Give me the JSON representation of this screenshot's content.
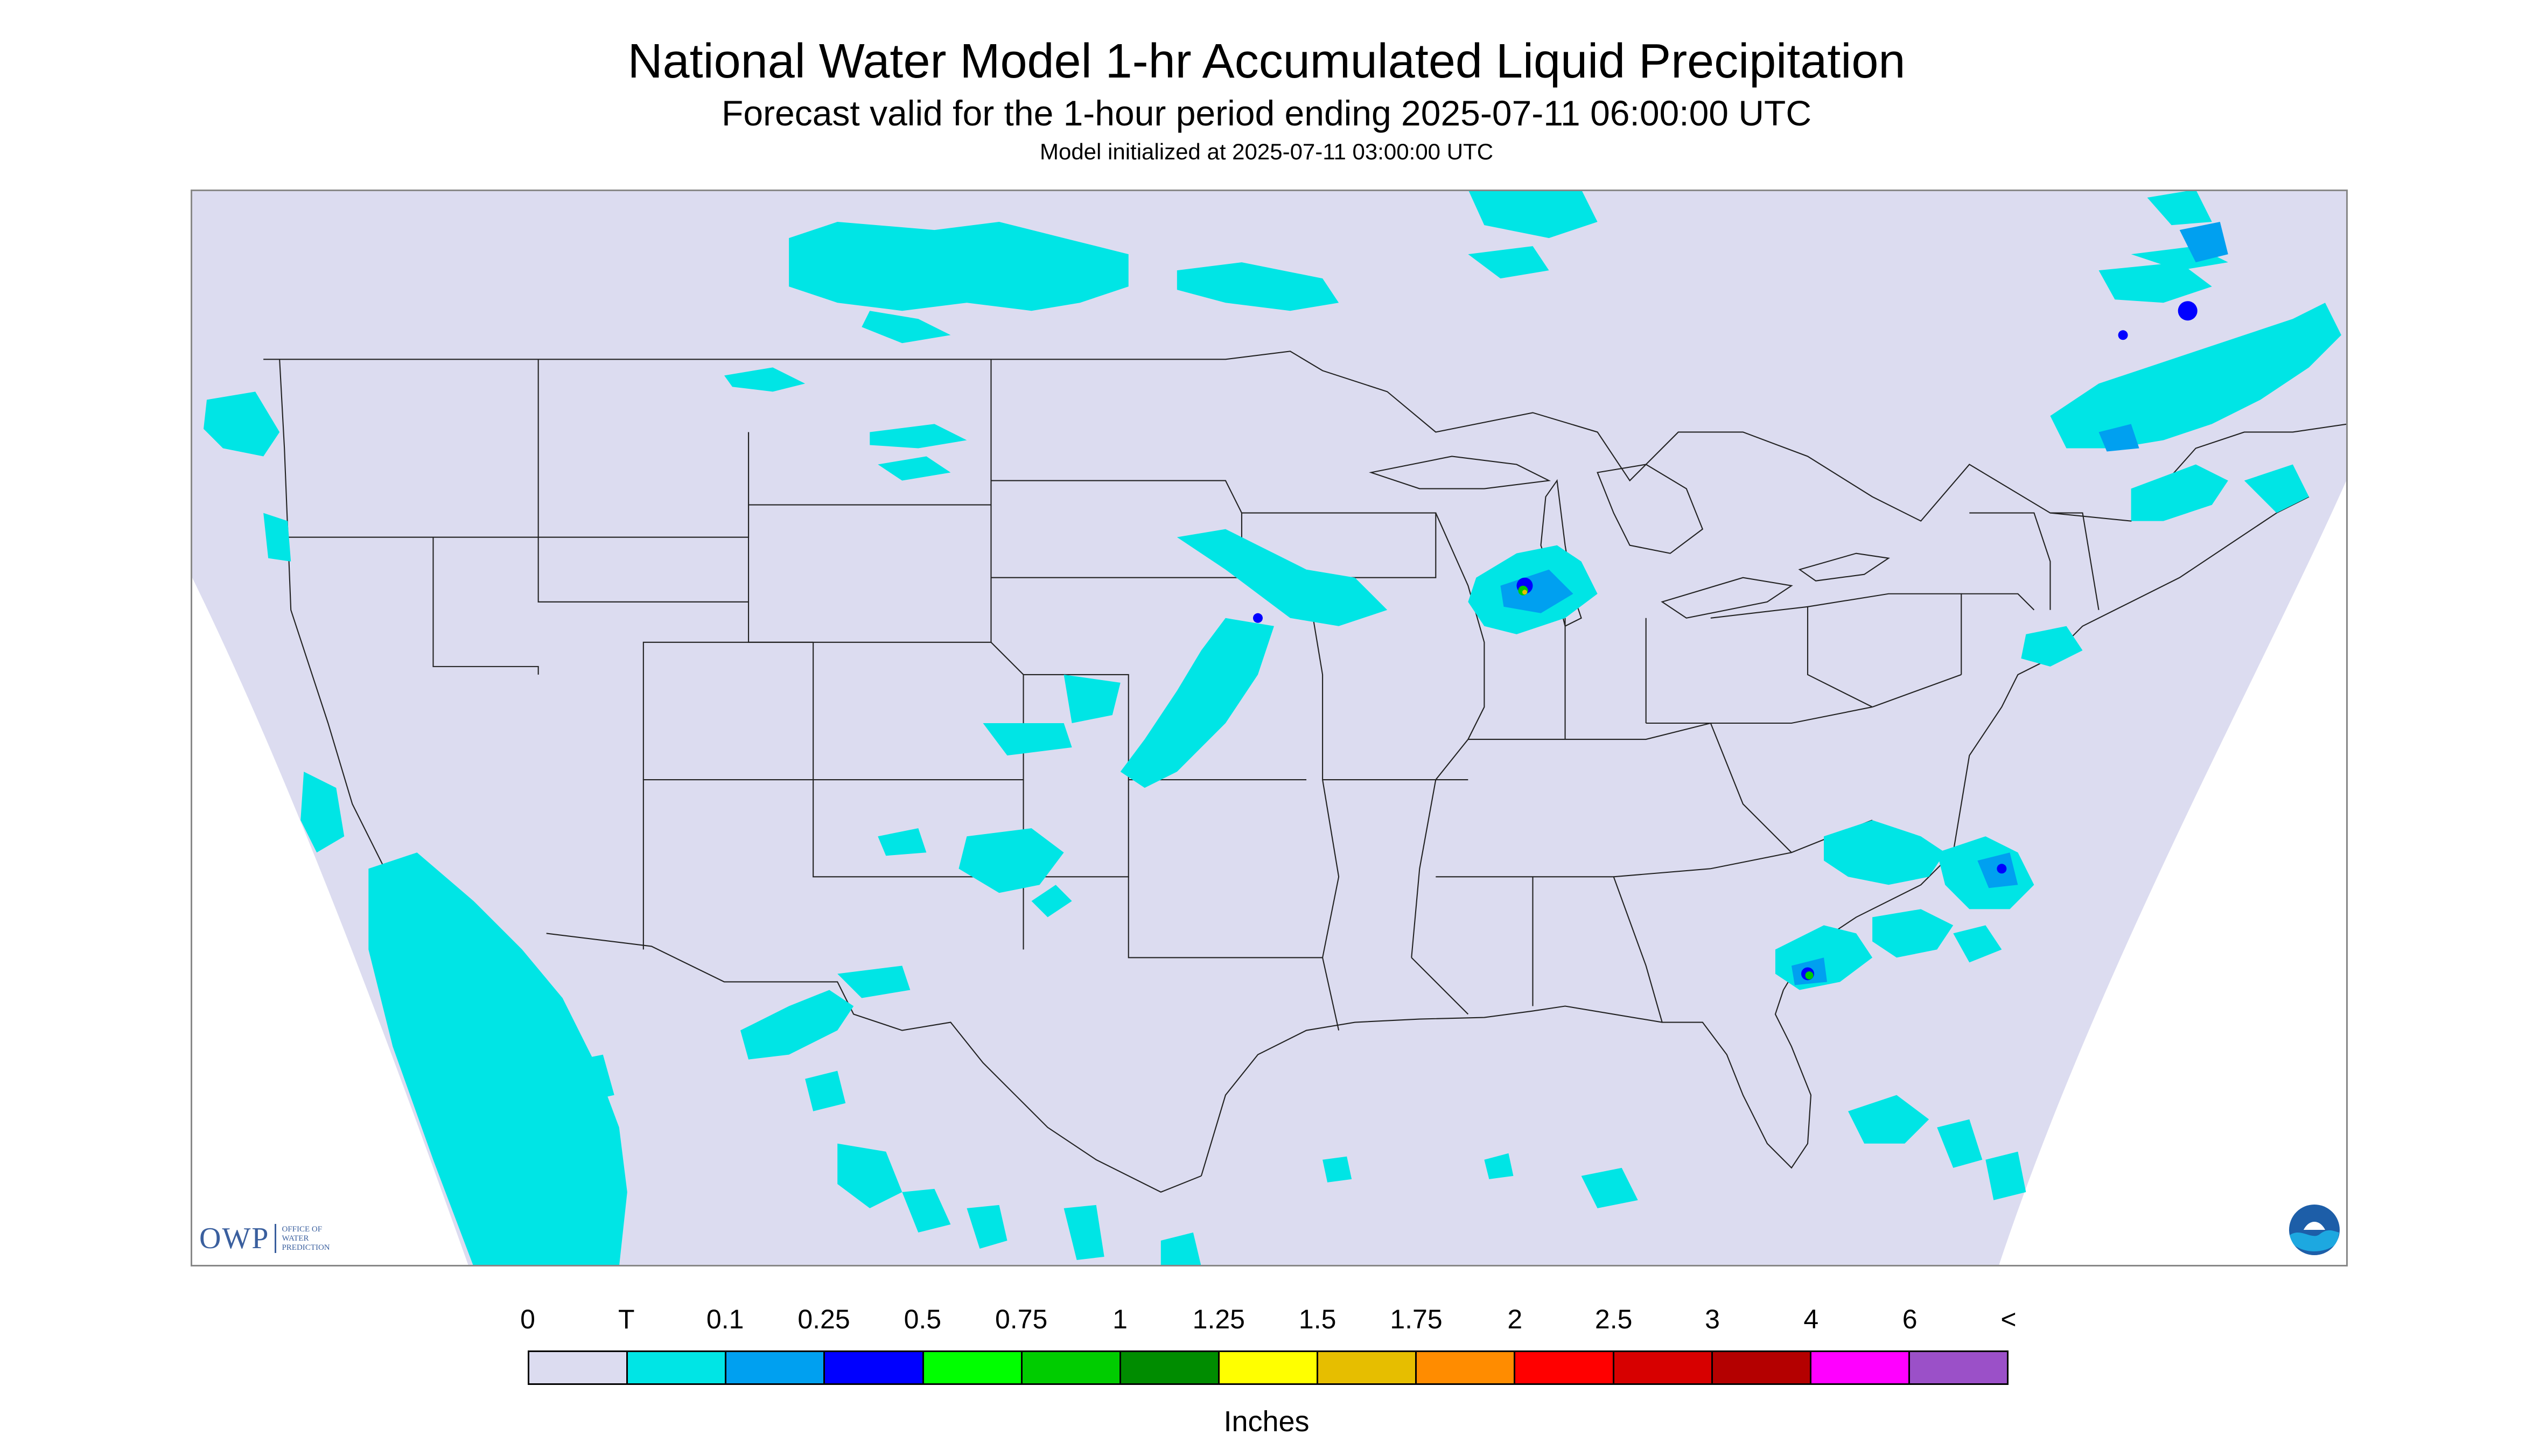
{
  "header": {
    "title": "National Water Model 1-hr Accumulated Liquid Precipitation",
    "subtitle": "Forecast valid for the 1-hour period ending 2025-07-11 06:00:00 UTC",
    "init": "Model initialized at 2025-07-11 03:00:00 UTC"
  },
  "legend": {
    "labels": [
      "0",
      "T",
      "0.1",
      "0.25",
      "0.5",
      "0.75",
      "1",
      "1.25",
      "1.5",
      "1.75",
      "2",
      "2.5",
      "3",
      "4",
      "6",
      "<"
    ],
    "colors": [
      "#dcdcf0",
      "#00e5e5",
      "#00a0f0",
      "#0000ff",
      "#00ff00",
      "#00cc00",
      "#008c00",
      "#ffff00",
      "#e6be00",
      "#ff8c00",
      "#ff0000",
      "#d70000",
      "#b40000",
      "#ff00ff",
      "#9b50c8"
    ],
    "units": "Inches"
  },
  "map": {
    "domain_fill": "#dcdcf0",
    "precip_light": "#00e5e5",
    "precip_mod": "#00a0f0",
    "precip_heavy": "#0000ff",
    "precip_green": "#00cc00",
    "precip_yellow": "#e6be00",
    "boundary_color": "#222222"
  },
  "logos": {
    "owp_main": "OWP",
    "owp_sub": [
      "OFFICE OF",
      "WATER",
      "PREDICTION"
    ],
    "noaa_icon": "noaa-logo-icon"
  }
}
